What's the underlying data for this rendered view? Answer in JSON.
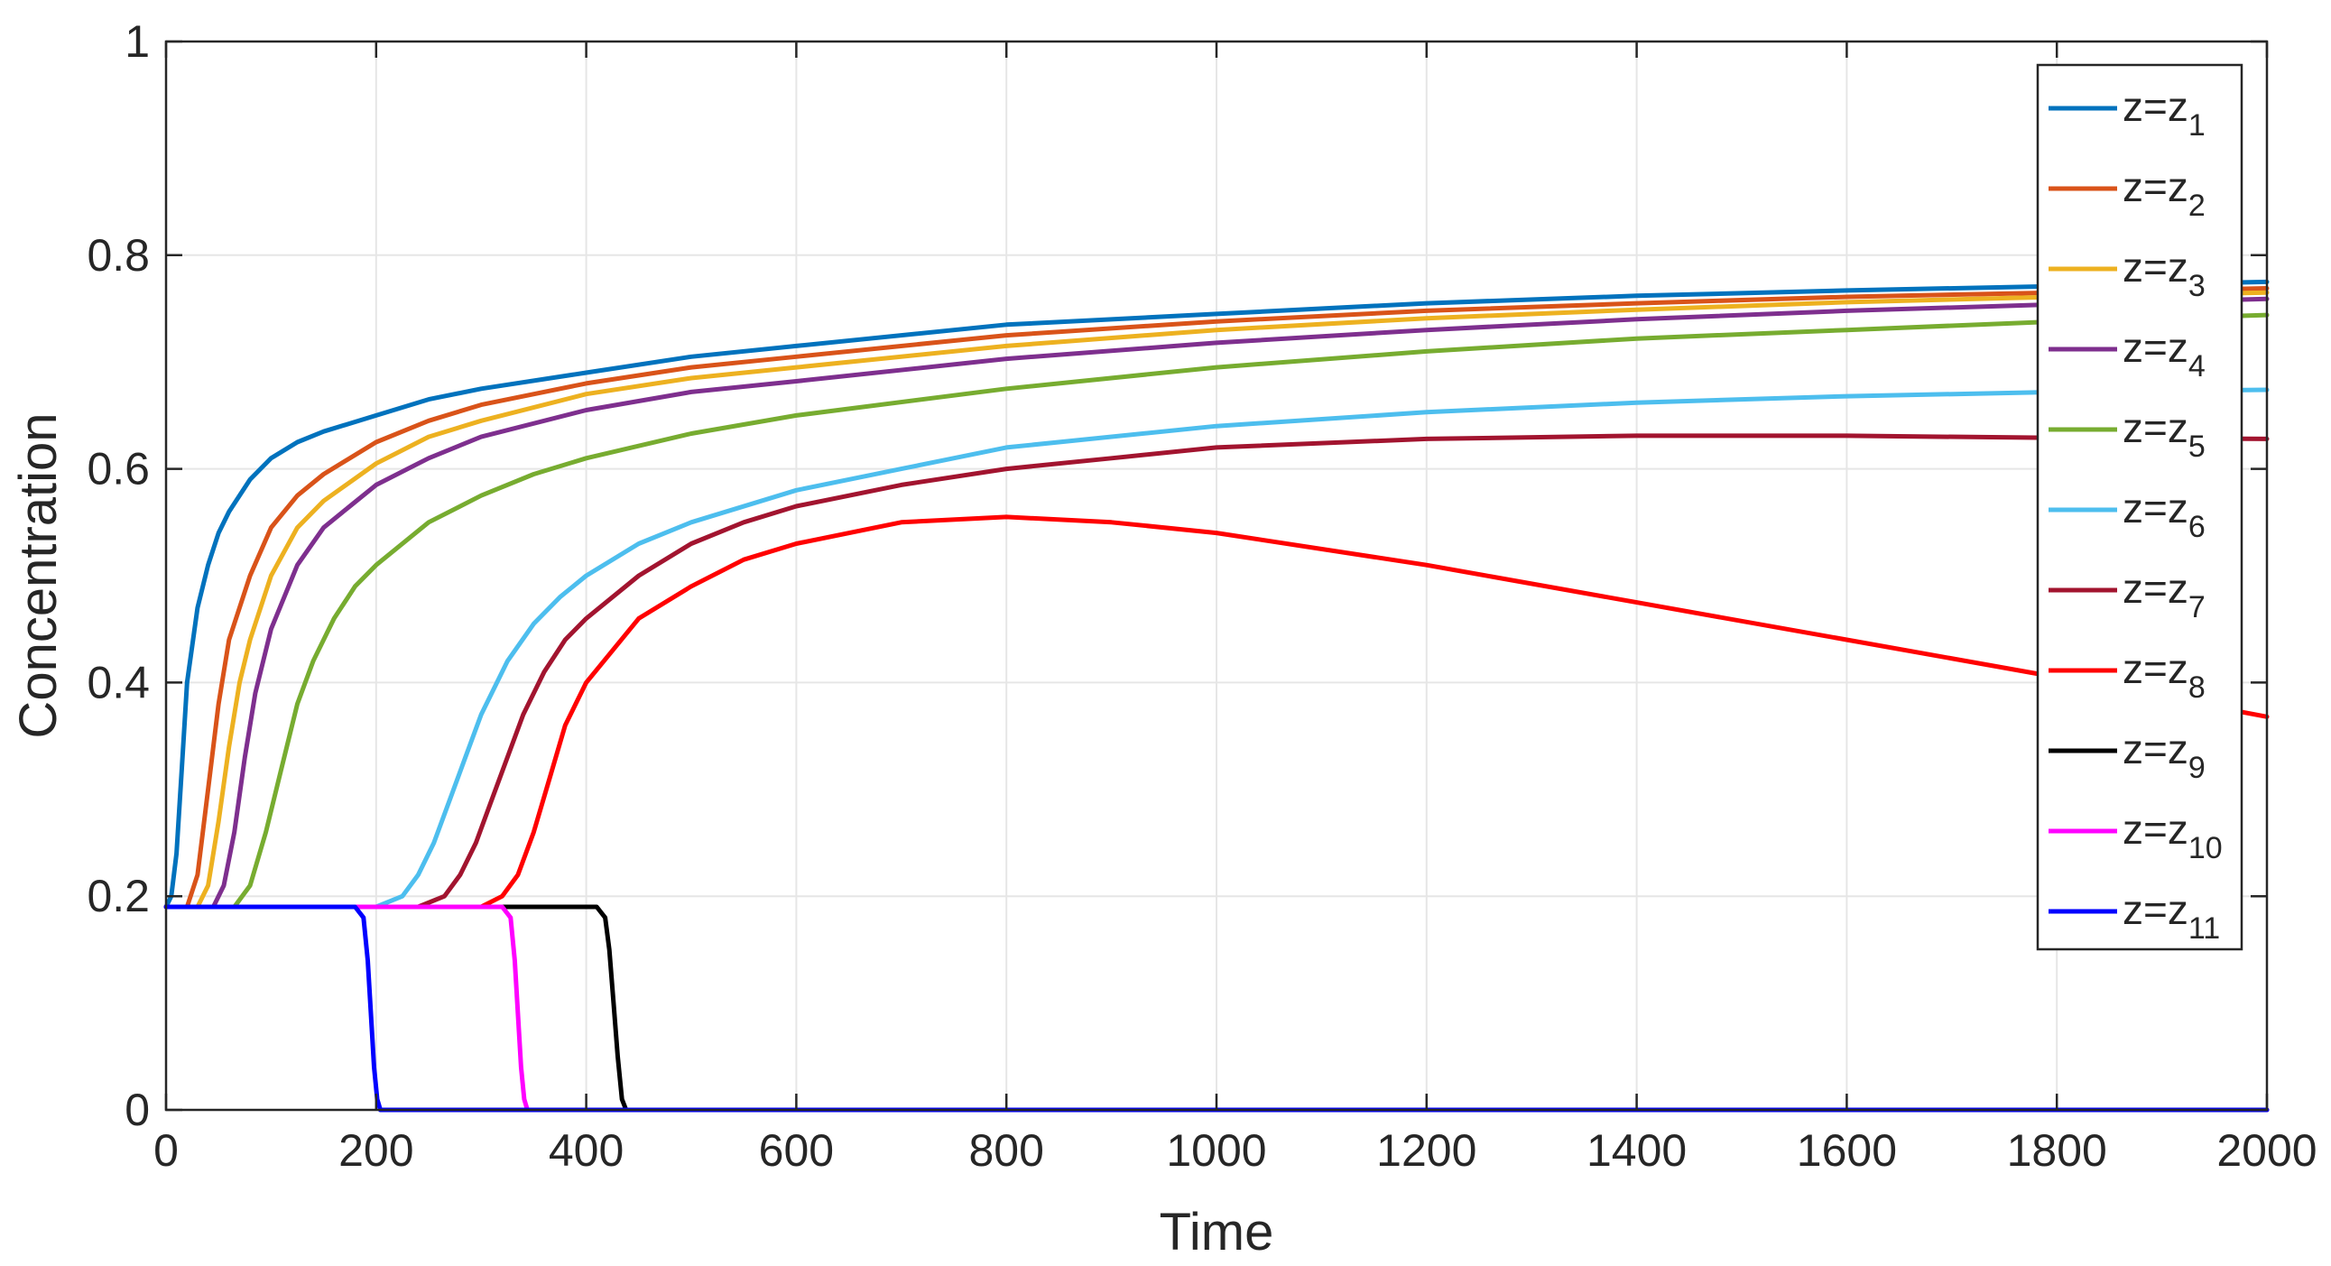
{
  "chart_data": {
    "type": "line",
    "title": "",
    "xlabel": "Time",
    "ylabel": "Concentration",
    "xlim": [
      0,
      2000
    ],
    "ylim": [
      0,
      1
    ],
    "xticks": [
      0,
      200,
      400,
      600,
      800,
      1000,
      1200,
      1400,
      1600,
      1800,
      2000
    ],
    "yticks": [
      0,
      0.2,
      0.4,
      0.6,
      0.8,
      1
    ],
    "xtick_labels": [
      "0",
      "200",
      "400",
      "600",
      "800",
      "1000",
      "1200",
      "1400",
      "1600",
      "1800",
      "2000"
    ],
    "ytick_labels": [
      "0",
      "0.2",
      "0.4",
      "0.6",
      "0.8",
      "1"
    ],
    "grid": true,
    "legend_position": "top-right",
    "series": [
      {
        "name": "z=z1",
        "label_main": "z=z",
        "label_sub": "1",
        "color": "#0072BD",
        "x": [
          0,
          5,
          10,
          15,
          20,
          30,
          40,
          50,
          60,
          80,
          100,
          125,
          150,
          200,
          250,
          300,
          400,
          500,
          600,
          800,
          1000,
          1200,
          1400,
          1600,
          1800,
          2000
        ],
        "y": [
          0.19,
          0.2,
          0.24,
          0.32,
          0.4,
          0.47,
          0.51,
          0.54,
          0.56,
          0.59,
          0.61,
          0.625,
          0.635,
          0.65,
          0.665,
          0.675,
          0.69,
          0.705,
          0.715,
          0.735,
          0.745,
          0.755,
          0.762,
          0.767,
          0.771,
          0.775
        ]
      },
      {
        "name": "z=z2",
        "label_main": "z=z",
        "label_sub": "2",
        "color": "#D95319",
        "x": [
          0,
          20,
          30,
          40,
          50,
          60,
          80,
          100,
          125,
          150,
          200,
          250,
          300,
          400,
          500,
          600,
          800,
          1000,
          1200,
          1400,
          1600,
          1800,
          2000
        ],
        "y": [
          0.19,
          0.19,
          0.22,
          0.3,
          0.38,
          0.44,
          0.5,
          0.545,
          0.575,
          0.595,
          0.625,
          0.645,
          0.66,
          0.68,
          0.695,
          0.705,
          0.725,
          0.738,
          0.748,
          0.755,
          0.761,
          0.765,
          0.769
        ]
      },
      {
        "name": "z=z3",
        "label_main": "z=z",
        "label_sub": "3",
        "color": "#EDB120",
        "x": [
          0,
          30,
          40,
          50,
          60,
          70,
          80,
          100,
          125,
          150,
          200,
          250,
          300,
          400,
          500,
          600,
          800,
          1000,
          1200,
          1400,
          1600,
          1800,
          2000
        ],
        "y": [
          0.19,
          0.19,
          0.21,
          0.27,
          0.34,
          0.4,
          0.44,
          0.5,
          0.545,
          0.57,
          0.605,
          0.63,
          0.645,
          0.67,
          0.685,
          0.695,
          0.715,
          0.73,
          0.741,
          0.749,
          0.756,
          0.761,
          0.765
        ]
      },
      {
        "name": "z=z4",
        "label_main": "z=z",
        "label_sub": "4",
        "color": "#7E2F8E",
        "x": [
          0,
          45,
          55,
          65,
          75,
          85,
          100,
          125,
          150,
          175,
          200,
          250,
          300,
          400,
          500,
          600,
          800,
          1000,
          1200,
          1400,
          1600,
          1800,
          2000
        ],
        "y": [
          0.19,
          0.19,
          0.21,
          0.26,
          0.33,
          0.39,
          0.45,
          0.51,
          0.545,
          0.565,
          0.585,
          0.61,
          0.63,
          0.655,
          0.672,
          0.682,
          0.703,
          0.718,
          0.73,
          0.74,
          0.748,
          0.754,
          0.759
        ]
      },
      {
        "name": "z=z5",
        "label_main": "z=z",
        "label_sub": "5",
        "color": "#77AC30",
        "x": [
          0,
          65,
          80,
          95,
          110,
          125,
          140,
          160,
          180,
          200,
          250,
          300,
          350,
          400,
          500,
          600,
          800,
          1000,
          1200,
          1400,
          1600,
          1800,
          2000
        ],
        "y": [
          0.19,
          0.19,
          0.21,
          0.26,
          0.32,
          0.38,
          0.42,
          0.46,
          0.49,
          0.51,
          0.55,
          0.575,
          0.595,
          0.61,
          0.633,
          0.65,
          0.675,
          0.695,
          0.71,
          0.722,
          0.73,
          0.738,
          0.744
        ]
      },
      {
        "name": "z=z6",
        "label_main": "z=z",
        "label_sub": "6",
        "color": "#4DBEEE",
        "x": [
          0,
          200,
          225,
          240,
          255,
          270,
          285,
          300,
          325,
          350,
          375,
          400,
          450,
          500,
          600,
          700,
          800,
          1000,
          1200,
          1400,
          1600,
          1800,
          2000
        ],
        "y": [
          0.19,
          0.19,
          0.2,
          0.22,
          0.25,
          0.29,
          0.33,
          0.37,
          0.42,
          0.455,
          0.48,
          0.5,
          0.53,
          0.55,
          0.58,
          0.6,
          0.62,
          0.64,
          0.653,
          0.662,
          0.668,
          0.672,
          0.674
        ]
      },
      {
        "name": "z=z7",
        "label_main": "z=z",
        "label_sub": "7",
        "color": "#A2142F",
        "x": [
          0,
          240,
          265,
          280,
          295,
          310,
          325,
          340,
          360,
          380,
          400,
          450,
          500,
          550,
          600,
          700,
          800,
          900,
          1000,
          1200,
          1400,
          1600,
          1800,
          2000
        ],
        "y": [
          0.19,
          0.19,
          0.2,
          0.22,
          0.25,
          0.29,
          0.33,
          0.37,
          0.41,
          0.44,
          0.46,
          0.5,
          0.53,
          0.55,
          0.565,
          0.585,
          0.6,
          0.61,
          0.62,
          0.628,
          0.631,
          0.631,
          0.629,
          0.628
        ]
      },
      {
        "name": "z=z8",
        "label_main": "z=z",
        "label_sub": "8",
        "color": "#FF0000",
        "x": [
          0,
          300,
          320,
          335,
          350,
          365,
          380,
          400,
          425,
          450,
          500,
          550,
          600,
          700,
          800,
          900,
          1000,
          1200,
          1400,
          1600,
          1800,
          2000
        ],
        "y": [
          0.19,
          0.19,
          0.2,
          0.22,
          0.26,
          0.31,
          0.36,
          0.4,
          0.43,
          0.46,
          0.49,
          0.515,
          0.53,
          0.55,
          0.555,
          0.55,
          0.54,
          0.51,
          0.475,
          0.44,
          0.405,
          0.368
        ]
      },
      {
        "name": "z=z9",
        "label_main": "z=z",
        "label_sub": "9",
        "color": "#000000",
        "x": [
          0,
          410,
          418,
          422,
          426,
          430,
          434,
          438,
          2000
        ],
        "y": [
          0.19,
          0.19,
          0.18,
          0.15,
          0.1,
          0.05,
          0.01,
          0,
          0
        ]
      },
      {
        "name": "z=z10",
        "label_main": "z=z",
        "label_sub": "10",
        "color": "#FF00FF",
        "x": [
          0,
          320,
          328,
          332,
          335,
          338,
          341,
          344,
          2000
        ],
        "y": [
          0.19,
          0.19,
          0.18,
          0.14,
          0.09,
          0.04,
          0.01,
          0,
          0
        ]
      },
      {
        "name": "z=z11",
        "label_main": "z=z",
        "label_sub": "11",
        "color": "#0000FF",
        "x": [
          0,
          180,
          188,
          192,
          195,
          198,
          201,
          204,
          2000
        ],
        "y": [
          0.19,
          0.19,
          0.18,
          0.14,
          0.09,
          0.04,
          0.01,
          0,
          0
        ]
      }
    ]
  }
}
